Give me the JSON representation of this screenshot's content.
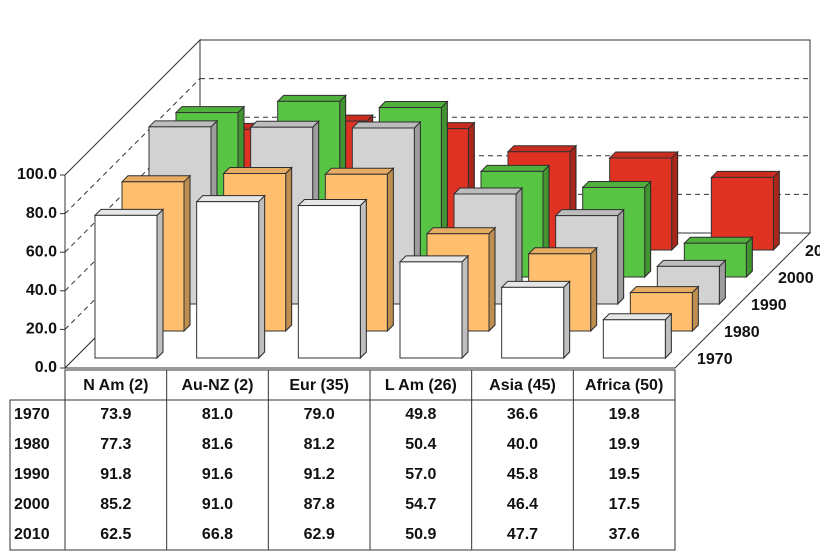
{
  "chart_data": {
    "type": "bar3d",
    "categories": [
      "N Am (2)",
      "Au-NZ (2)",
      "Eur (35)",
      "L Am (26)",
      "Asia (45)",
      "Africa (50)"
    ],
    "ylim": [
      0,
      100
    ],
    "yticks": [
      {
        "value": 0,
        "label": "0.0"
      },
      {
        "value": 20,
        "label": "20.0"
      },
      {
        "value": 40,
        "label": "40.0"
      },
      {
        "value": 60,
        "label": "60.0"
      },
      {
        "value": 80,
        "label": "80.0"
      },
      {
        "value": 100,
        "label": "100.0"
      }
    ],
    "grid": true,
    "series": [
      {
        "name": "1970",
        "color": "#ffffff",
        "values": [
          73.9,
          81.0,
          79.0,
          49.8,
          36.6,
          19.8
        ],
        "value_labels": [
          "73.9",
          "81.0",
          "79.0",
          "49.8",
          "36.6",
          "19.8"
        ]
      },
      {
        "name": "1980",
        "color": "#ffbf6e",
        "values": [
          77.3,
          81.6,
          81.2,
          50.4,
          40.0,
          19.9
        ],
        "value_labels": [
          "77.3",
          "81.6",
          "81.2",
          "50.4",
          "40.0",
          "19.9"
        ]
      },
      {
        "name": "1990",
        "color": "#d2d2d2",
        "values": [
          91.8,
          91.6,
          91.2,
          57.0,
          45.8,
          19.5
        ],
        "value_labels": [
          "91.8",
          "91.6",
          "91.2",
          "57.0",
          "45.8",
          "19.5"
        ]
      },
      {
        "name": "2000",
        "color": "#58c443",
        "values": [
          85.2,
          91.0,
          87.8,
          54.7,
          46.4,
          17.5
        ],
        "value_labels": [
          "85.2",
          "91.0",
          "87.8",
          "54.7",
          "46.4",
          "17.5"
        ]
      },
      {
        "name": "2010",
        "color": "#e03222",
        "values": [
          62.5,
          66.8,
          62.9,
          50.9,
          47.7,
          37.6
        ],
        "value_labels": [
          "62.5",
          "66.8",
          "62.9",
          "50.9",
          "47.7",
          "37.6"
        ]
      }
    ]
  }
}
